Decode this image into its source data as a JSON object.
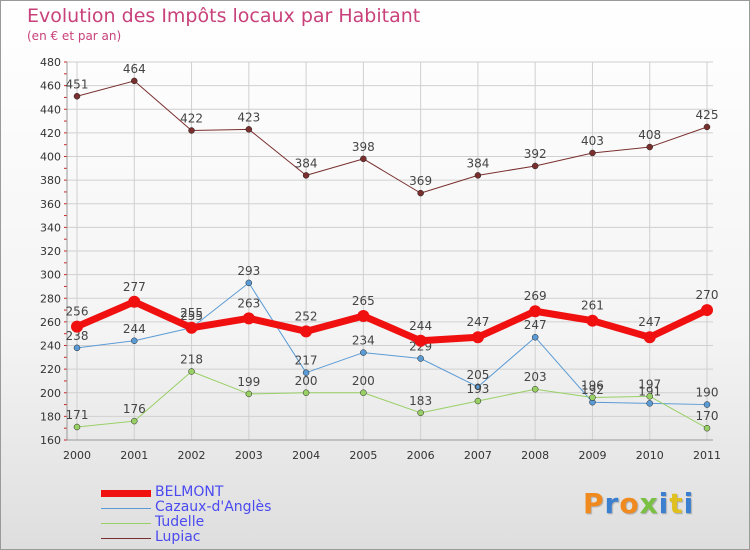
{
  "title": "Evolution des Impôts locaux par Habitant",
  "subtitle": "(en € et par an)",
  "logo": {
    "letters": [
      "P",
      "r",
      "o",
      "x",
      "i",
      "t",
      "i"
    ],
    "colors": [
      "#f08a1e",
      "#3a7fd0",
      "#f08a1e",
      "#7ac043",
      "#3a7fd0",
      "#e0c020",
      "#3a7fd0"
    ]
  },
  "chart_data": {
    "type": "line",
    "x": [
      "2000",
      "2001",
      "2002",
      "2003",
      "2004",
      "2005",
      "2006",
      "2007",
      "2008",
      "2009",
      "2010",
      "2011"
    ],
    "ylim": [
      160,
      480
    ],
    "yticks": [
      160,
      180,
      200,
      220,
      240,
      260,
      280,
      300,
      320,
      340,
      360,
      380,
      400,
      420,
      440,
      460,
      480
    ],
    "grid": true,
    "legend_position": "bottom-left",
    "series": [
      {
        "name": "Lupiac",
        "color": "#7a2f2f",
        "line_width": 1,
        "values": [
          451,
          464,
          422,
          423,
          384,
          398,
          369,
          384,
          392,
          403,
          408,
          425
        ],
        "labels": [
          "451",
          "464",
          "422",
          "423",
          "384",
          "398",
          "369",
          "384",
          "392",
          "403",
          "408",
          "425"
        ]
      },
      {
        "name": "Cazaux-d'Anglès",
        "color": "#5b9bd5",
        "line_width": 1,
        "values": [
          238,
          244,
          255,
          293,
          217,
          234,
          229,
          205,
          247,
          192,
          191,
          190
        ],
        "labels": [
          "238",
          "244",
          "255",
          "293",
          "217",
          "234",
          "229",
          "205",
          "247",
          "192",
          "191",
          "190"
        ]
      },
      {
        "name": "Tudelle",
        "color": "#99d066",
        "line_width": 1,
        "values": [
          171,
          176,
          218,
          199,
          200,
          200,
          183,
          193,
          203,
          196,
          197,
          170
        ],
        "labels": [
          "171",
          "176",
          "218",
          "199",
          "200",
          "200",
          "183",
          "193",
          "203",
          "196",
          "197",
          "170"
        ]
      },
      {
        "name": "BELMONT",
        "color": "#f01010",
        "line_width": 7,
        "values": [
          256,
          277,
          255,
          263,
          252,
          265,
          244,
          247,
          269,
          261,
          247,
          270
        ],
        "labels": [
          "256",
          "277",
          "255",
          "263",
          "252",
          "265",
          "244",
          "247",
          "269",
          "261",
          "247",
          "270"
        ]
      }
    ],
    "legend": [
      {
        "name": "BELMONT",
        "color": "#f01010",
        "line_width": 7
      },
      {
        "name": "Cazaux-d'Anglès",
        "color": "#5b9bd5",
        "line_width": 1
      },
      {
        "name": "Tudelle",
        "color": "#99d066",
        "line_width": 1
      },
      {
        "name": "Lupiac",
        "color": "#7a2f2f",
        "line_width": 1
      }
    ]
  }
}
